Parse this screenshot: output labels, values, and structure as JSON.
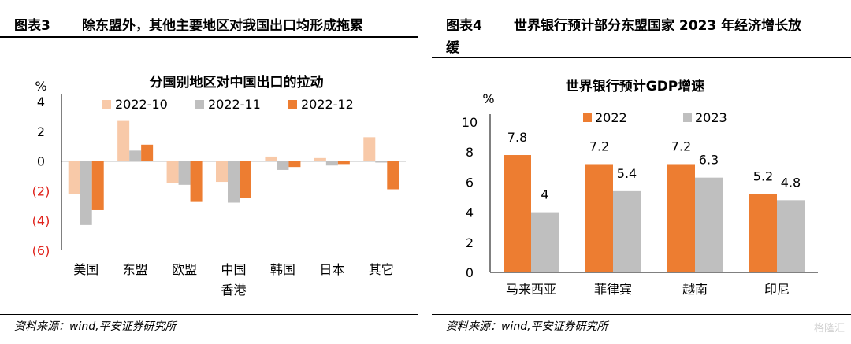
{
  "left": {
    "fig_no": "图表3",
    "fig_title": "除东盟外，其他主要地区对我国出口均形成拖累",
    "source": "资料来源：wind,平安证券研究所"
  },
  "right": {
    "fig_no": "图表4",
    "fig_title_line1": "世界银行预计部分东盟国家 2023 年经济增长放",
    "fig_title_line2": "缓",
    "source": "资料来源：wind,平安证券研究所"
  },
  "watermark": "格隆汇",
  "colors": {
    "light": "#f8c9a8",
    "gray": "#bfbfbf",
    "orange": "#ed7d31",
    "negative": "#e0231c"
  },
  "chart_data": [
    {
      "type": "bar",
      "title": "分国别地区对中国出口的拉动",
      "ylabel": "%",
      "ylim": [
        -6,
        4
      ],
      "y_ticks": [
        "4",
        "2",
        "0",
        "(2)",
        "(4)",
        "(6)"
      ],
      "categories": [
        "美国",
        "东盟",
        "欧盟",
        "中国香港",
        "韩国",
        "日本",
        "其它"
      ],
      "category_lines": [
        [
          "美国"
        ],
        [
          "东盟"
        ],
        [
          "欧盟"
        ],
        [
          "中国",
          "香港"
        ],
        [
          "韩国"
        ],
        [
          "日本"
        ],
        [
          "其它"
        ]
      ],
      "series": [
        {
          "name": "2022-10",
          "values": [
            -2.2,
            2.7,
            -1.5,
            -1.4,
            0.3,
            0.2,
            1.6
          ]
        },
        {
          "name": "2022-11",
          "values": [
            -4.3,
            0.7,
            -1.6,
            -2.8,
            -0.6,
            -0.3,
            -0.1
          ]
        },
        {
          "name": "2022-12",
          "values": [
            -3.3,
            1.1,
            -2.7,
            -2.5,
            -0.4,
            -0.2,
            -1.9
          ]
        }
      ]
    },
    {
      "type": "bar",
      "title": "世界银行预计GDP增速",
      "ylabel": "%",
      "ylim": [
        0,
        10
      ],
      "y_ticks": [
        "0",
        "2",
        "4",
        "6",
        "8",
        "10"
      ],
      "categories": [
        "马来西亚",
        "菲律宾",
        "越南",
        "印尼"
      ],
      "series": [
        {
          "name": "2022",
          "values": [
            7.8,
            7.2,
            7.2,
            5.2
          ],
          "labels": [
            "7.8",
            "7.2",
            "7.2",
            "5.2"
          ]
        },
        {
          "name": "2023",
          "values": [
            4,
            5.4,
            6.3,
            4.8
          ],
          "labels": [
            "4",
            "5.4",
            "6.3",
            "4.8"
          ]
        }
      ]
    }
  ]
}
